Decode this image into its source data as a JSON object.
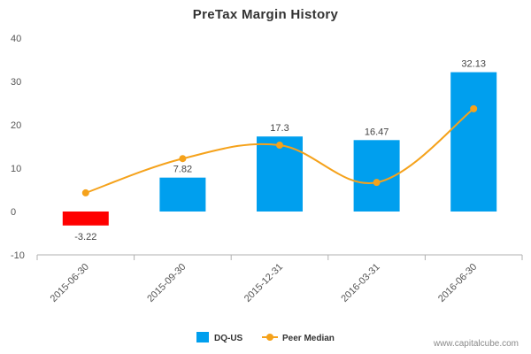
{
  "watermark": "www.capitalcube.com",
  "chart_data": {
    "type": "bar",
    "title": "PreTax Margin History",
    "xlabel": "",
    "ylabel": "",
    "categories": [
      "2015-06-30",
      "2015-09-30",
      "2015-12-31",
      "2016-03-31",
      "2016-06-30"
    ],
    "ylim": [
      -10,
      40
    ],
    "yticks": [
      -10,
      0,
      10,
      20,
      30,
      40
    ],
    "grid": false,
    "legend_position": "bottom",
    "series": [
      {
        "name": "DQ-US",
        "type": "bar",
        "values": [
          -3.22,
          7.82,
          17.3,
          16.47,
          32.13
        ],
        "data_labels": [
          "-3.22",
          "7.82",
          "17.3",
          "16.47",
          "32.13"
        ],
        "color": "#009FEE",
        "negative_color": "#FF0000"
      },
      {
        "name": "Peer Median",
        "type": "line",
        "smooth": true,
        "values": [
          4.3,
          12.2,
          15.3,
          6.7,
          23.7
        ],
        "color": "#F5A21B"
      }
    ]
  }
}
